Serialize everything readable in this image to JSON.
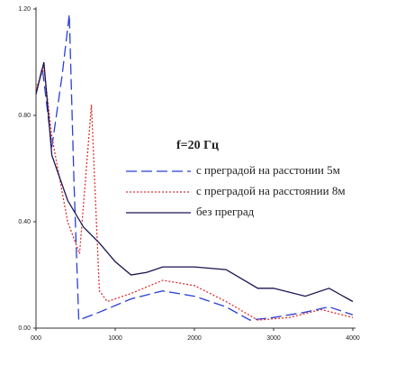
{
  "chart_data": {
    "type": "line",
    "legend_title": "f=20 Гц",
    "xlim": [
      0,
      4000
    ],
    "xticks": [
      {
        "value": 0,
        "label": "000"
      },
      1000,
      2000,
      3000,
      4000
    ],
    "ylim": [
      0,
      1.2
    ],
    "yticks": [
      {
        "value": 0,
        "label": "0.00"
      },
      {
        "value": 0.4,
        "label": "0.40"
      },
      {
        "value": 0.8,
        "label": "0.80"
      },
      {
        "value": 1.2,
        "label": "1.20"
      }
    ],
    "series": [
      {
        "name": "с преградой на расстонии 5м",
        "color": "#2a3fd6",
        "style": "dashed",
        "x": [
          0,
          80,
          200,
          330,
          420,
          480,
          540,
          800,
          1200,
          1600,
          2000,
          2400,
          2700,
          3000,
          3400,
          3700,
          4000
        ],
        "values": [
          0.88,
          0.98,
          0.68,
          0.95,
          1.18,
          0.55,
          0.03,
          0.06,
          0.11,
          0.14,
          0.12,
          0.08,
          0.03,
          0.04,
          0.06,
          0.08,
          0.05
        ]
      },
      {
        "name": "с преградой на расстоянии 8м",
        "color": "#e03030",
        "style": "dotted",
        "x": [
          0,
          100,
          200,
          400,
          550,
          700,
          800,
          900,
          1200,
          1600,
          2000,
          2400,
          2800,
          3200,
          3600,
          4000
        ],
        "values": [
          0.9,
          0.98,
          0.72,
          0.4,
          0.28,
          0.84,
          0.14,
          0.1,
          0.13,
          0.18,
          0.16,
          0.1,
          0.03,
          0.04,
          0.07,
          0.04
        ]
      },
      {
        "name": "без преград",
        "color": "#1a1450",
        "style": "solid",
        "x": [
          0,
          100,
          200,
          400,
          600,
          800,
          1000,
          1200,
          1400,
          1600,
          2000,
          2400,
          2800,
          3000,
          3400,
          3700,
          4000
        ],
        "values": [
          0.88,
          1.0,
          0.65,
          0.48,
          0.38,
          0.32,
          0.25,
          0.2,
          0.21,
          0.23,
          0.23,
          0.22,
          0.15,
          0.15,
          0.12,
          0.15,
          0.1
        ]
      }
    ]
  }
}
